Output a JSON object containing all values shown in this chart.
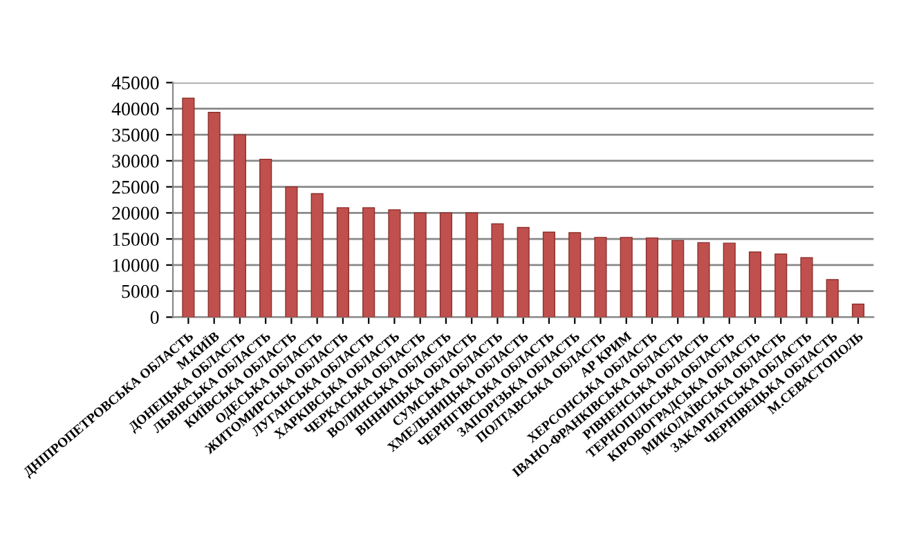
{
  "chart_data": {
    "type": "bar",
    "categories": [
      "ДНІПРОПЕТРОВСЬКА ОБЛАСТЬ",
      "М.КИЇВ",
      "ДОНЕЦЬКА ОБЛАСТЬ",
      "ЛЬВІВСЬКА ОБЛАСТЬ",
      "КИЇВСЬКА ОБЛАСТЬ",
      "ОДЕСЬКА ОБЛАСТЬ",
      "ЖИТОМИРСЬКА ОБЛАСТЬ",
      "ЛУГАНСЬКА ОБЛАСТЬ",
      "ХАРКІВСЬКА ОБЛАСТЬ",
      "ЧЕРКАСЬКА ОБЛАСТЬ",
      "ВОЛИНСЬКА ОБЛАСТЬ",
      "ВІННИЦЬКА ОБЛАСТЬ",
      "СУМСЬКА ОБЛАСТЬ",
      "ХМЕЛЬНИЦЬКА ОБЛАСТЬ",
      "ЧЕРНІГІВСЬКА ОБЛАСТЬ",
      "ЗАПОРІЗЬКА ОБЛАСТЬ",
      "ПОЛТАВСЬКА ОБЛАСТЬ",
      "АР КРИМ",
      "ХЕРСОНСЬКА ОБЛАСТЬ",
      "ІВАНО-ФРАНКІВСЬКА ОБЛАСТЬ",
      "РІВНЕНСЬКА ОБЛАСТЬ",
      "ТЕРНОПІЛЬСЬКА ОБЛАСТЬ",
      "КІРОВОГРАДСЬКА ОБЛАСТЬ",
      "МИКОЛАЇВСЬКА ОБЛАСТЬ",
      "ЗАКАРПАТСЬКА ОБЛАСТЬ",
      "ЧЕРНІВЕЦЬКА ОБЛАСТЬ",
      "М.СЕВАСТОПОЛЬ"
    ],
    "values": [
      42000,
      39300,
      35000,
      30300,
      25000,
      23700,
      21000,
      21000,
      20600,
      20000,
      20000,
      20000,
      17900,
      17200,
      16300,
      16200,
      15300,
      15300,
      15200,
      14700,
      14300,
      14200,
      12500,
      12100,
      11400,
      7200,
      2500
    ],
    "color": "#c0504d",
    "ylim": [
      0,
      45000
    ],
    "yticks": [
      0,
      5000,
      10000,
      15000,
      20000,
      25000,
      30000,
      35000,
      40000,
      45000
    ],
    "grid": "y"
  }
}
